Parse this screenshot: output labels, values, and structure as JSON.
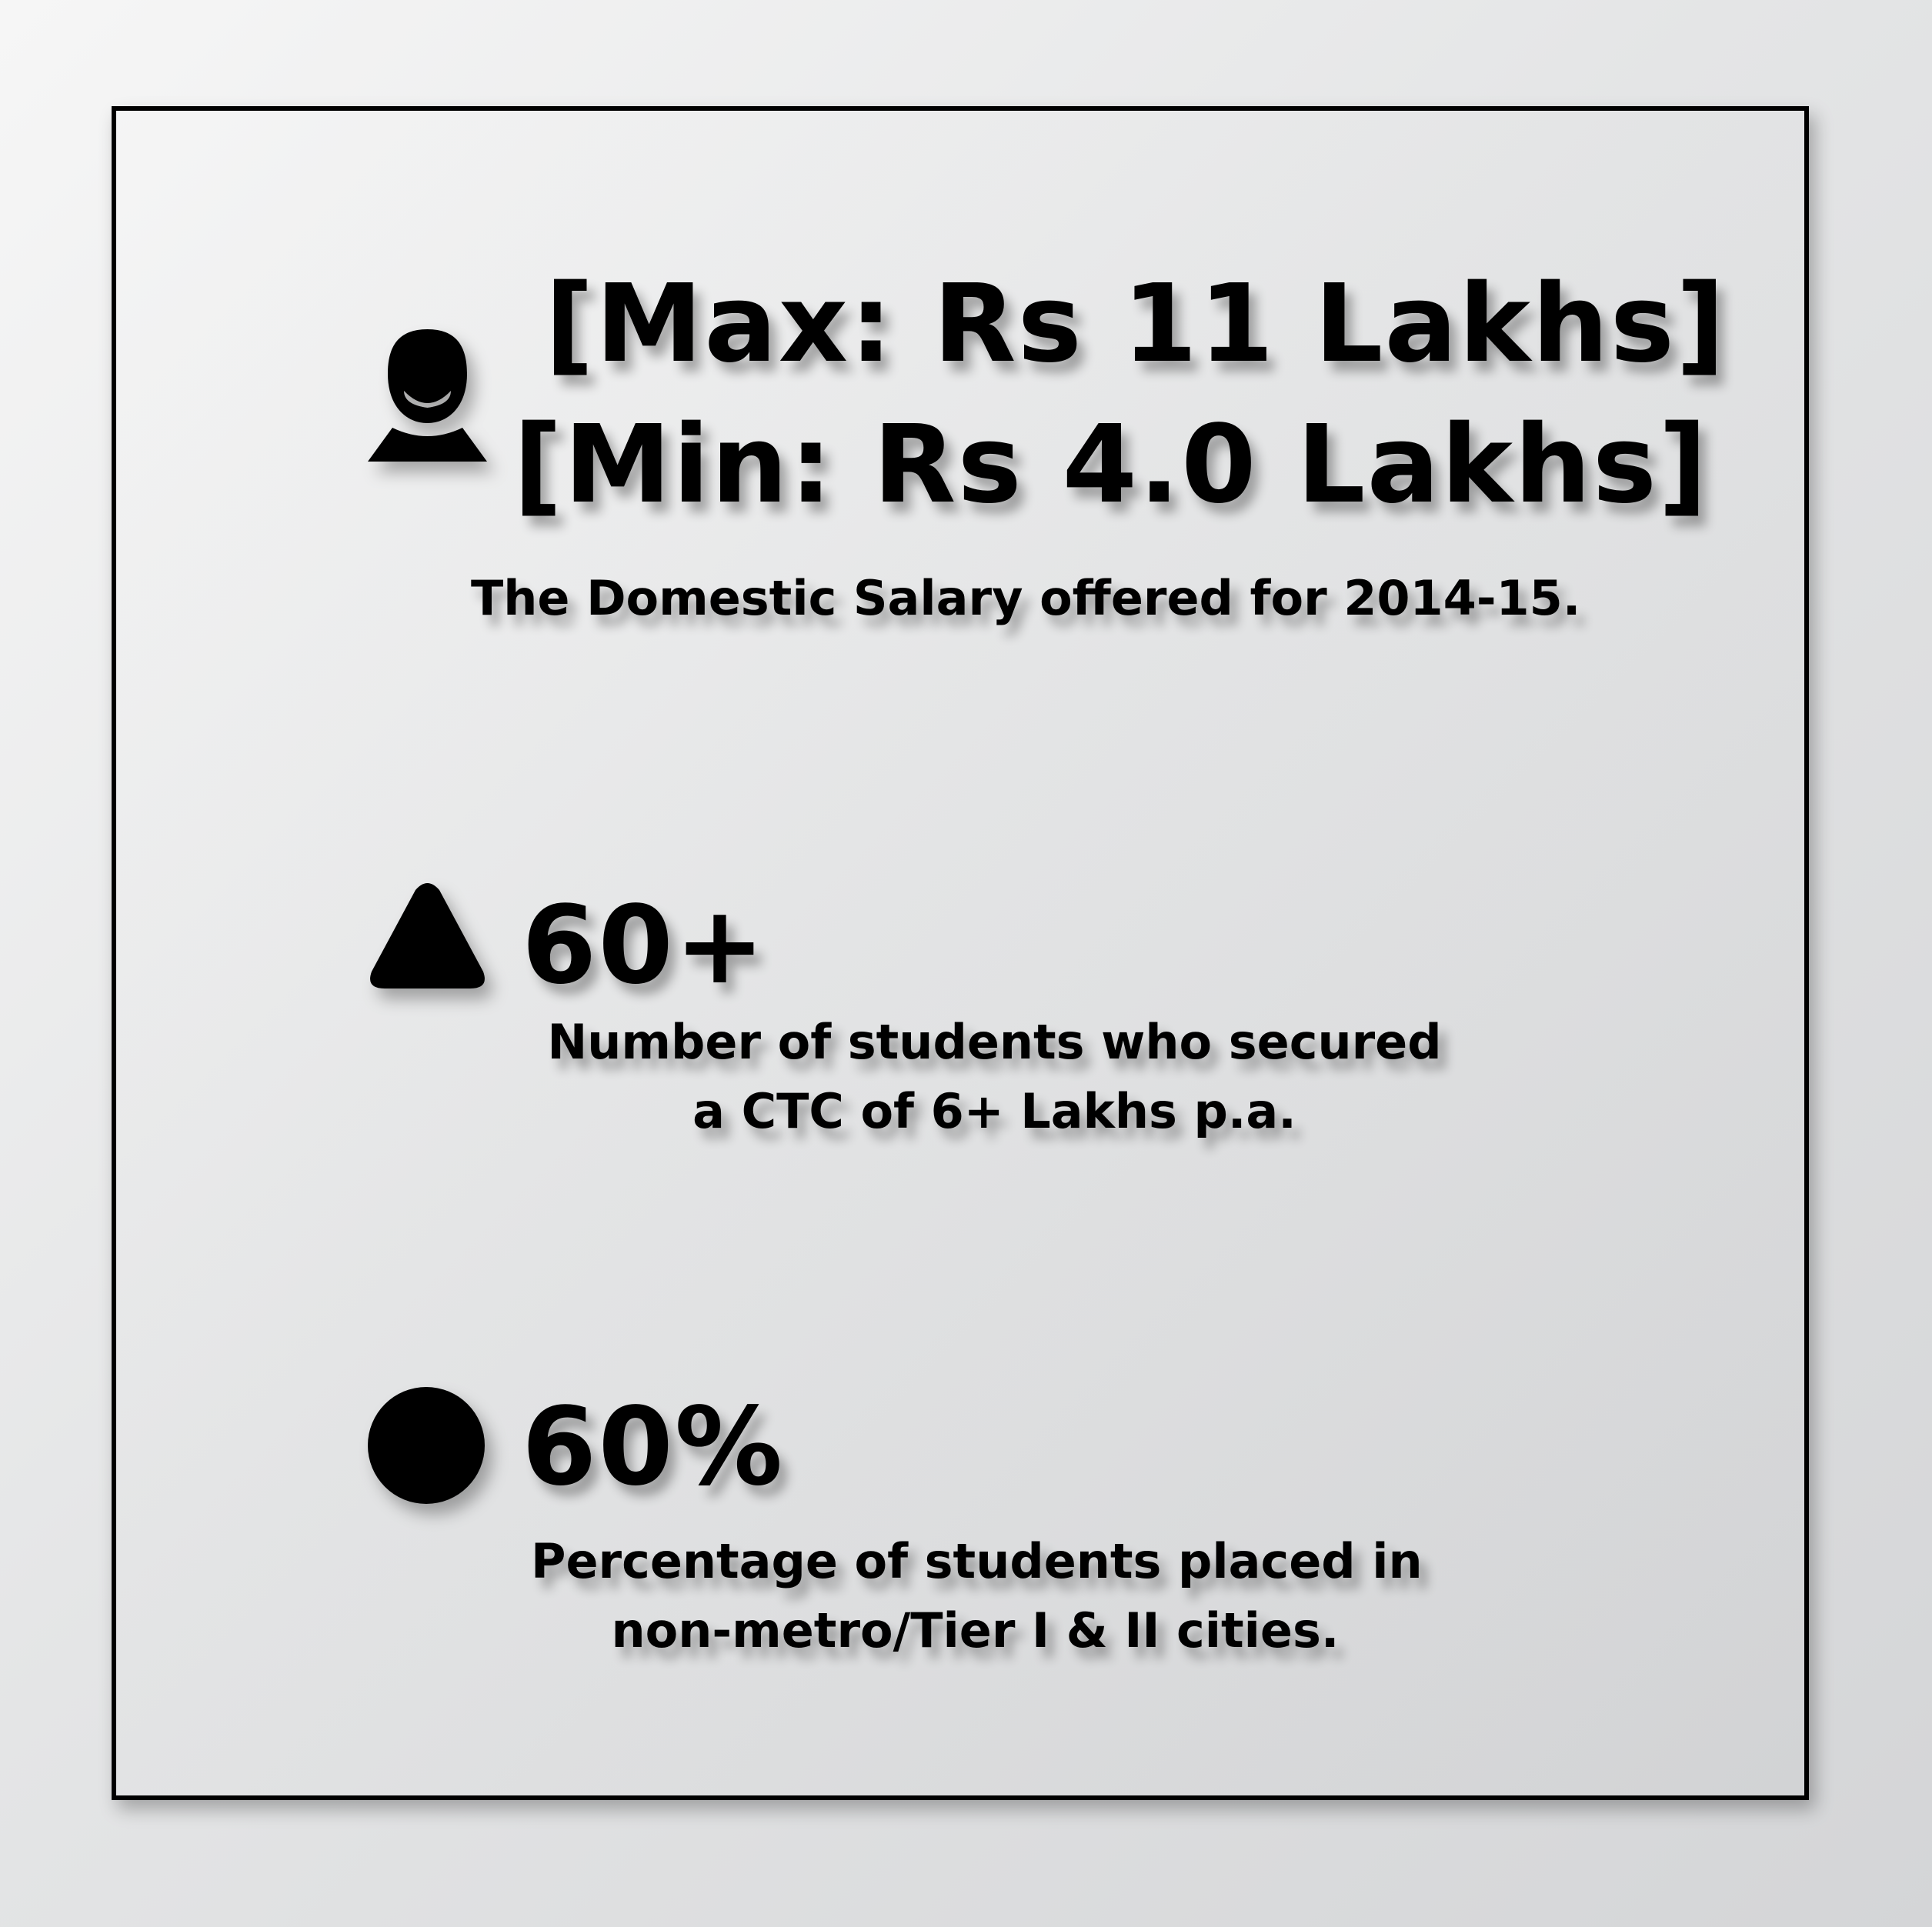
{
  "salary": {
    "icon": "person-icon",
    "max_line": "[Max: Rs 11 Lakhs]",
    "min_line": "[Min: Rs 4.0 Lakhs]",
    "caption": "The Domestic Salary offered for 2014-15."
  },
  "ctc_stat": {
    "icon": "triangle-icon",
    "value": "60+",
    "caption_line1": "Number of students who secured",
    "caption_line2": "a CTC of 6+ Lakhs p.a."
  },
  "placement_stat": {
    "icon": "circle-icon",
    "value": "60%",
    "caption_line1": "Percentage of students placed in",
    "caption_line2": "non-metro/Tier I & II cities."
  }
}
